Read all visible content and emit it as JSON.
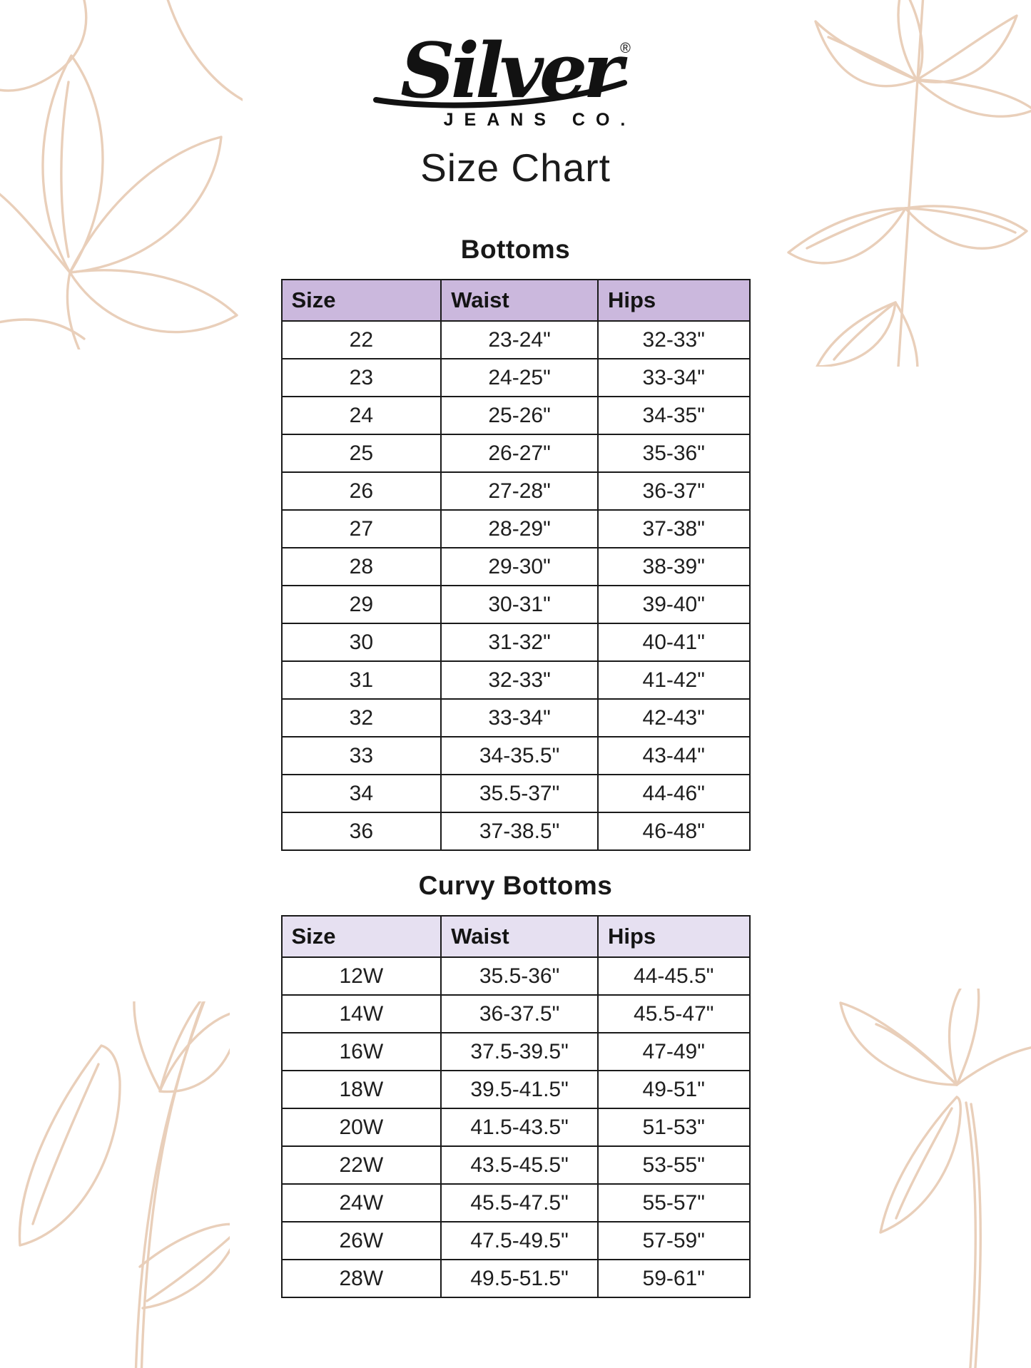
{
  "brand": {
    "name": "Silver",
    "registered": "®",
    "subtitle": "JEANS CO."
  },
  "page_title": "Size Chart",
  "colors": {
    "table1_header_bg": "#cbb8dd",
    "table2_header_bg": "#e6e0f1",
    "floral_line": "#e9cfba",
    "table_border": "#1a1a1a"
  },
  "sections": [
    {
      "heading": "Bottoms",
      "header_bg": "#cbb8dd",
      "columns": [
        "Size",
        "Waist",
        "Hips"
      ],
      "rows": [
        [
          "22",
          "23-24\"",
          "32-33\""
        ],
        [
          "23",
          "24-25\"",
          "33-34\""
        ],
        [
          "24",
          "25-26\"",
          "34-35\""
        ],
        [
          "25",
          "26-27\"",
          "35-36\""
        ],
        [
          "26",
          "27-28\"",
          "36-37\""
        ],
        [
          "27",
          "28-29\"",
          "37-38\""
        ],
        [
          "28",
          "29-30\"",
          "38-39\""
        ],
        [
          "29",
          "30-31\"",
          "39-40\""
        ],
        [
          "30",
          "31-32\"",
          "40-41\""
        ],
        [
          "31",
          "32-33\"",
          "41-42\""
        ],
        [
          "32",
          "33-34\"",
          "42-43\""
        ],
        [
          "33",
          "34-35.5\"",
          "43-44\""
        ],
        [
          "34",
          "35.5-37\"",
          "44-46\""
        ],
        [
          "36",
          "37-38.5\"",
          "46-48\""
        ]
      ]
    },
    {
      "heading": "Curvy Bottoms",
      "header_bg": "#e6e0f1",
      "columns": [
        "Size",
        "Waist",
        "Hips"
      ],
      "rows": [
        [
          "12W",
          "35.5-36\"",
          "44-45.5\""
        ],
        [
          "14W",
          "36-37.5\"",
          "45.5-47\""
        ],
        [
          "16W",
          "37.5-39.5\"",
          "47-49\""
        ],
        [
          "18W",
          "39.5-41.5\"",
          "49-51\""
        ],
        [
          "20W",
          "41.5-43.5\"",
          "51-53\""
        ],
        [
          "22W",
          "43.5-45.5\"",
          "53-55\""
        ],
        [
          "24W",
          "45.5-47.5\"",
          "55-57\""
        ],
        [
          "26W",
          "47.5-49.5\"",
          "57-59\""
        ],
        [
          "28W",
          "49.5-51.5\"",
          "59-61\""
        ]
      ]
    }
  ]
}
